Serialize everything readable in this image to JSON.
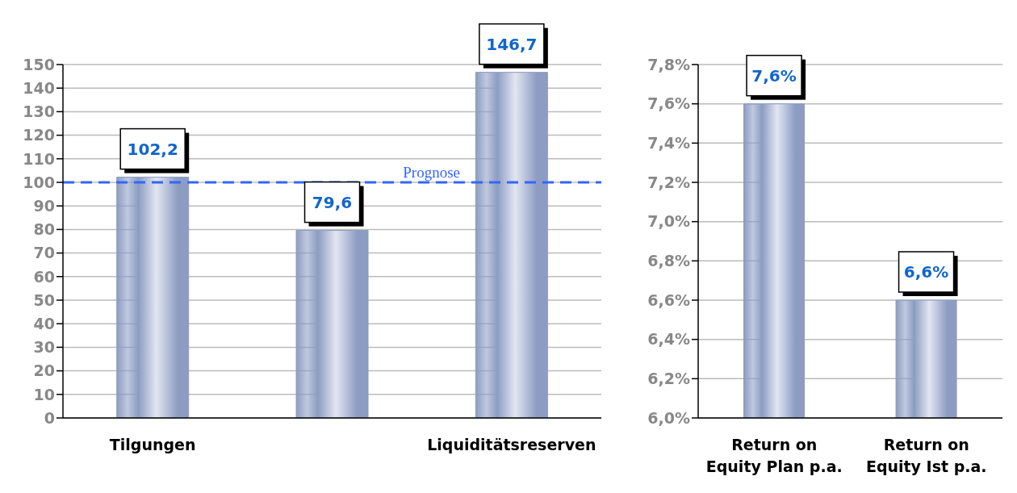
{
  "chart_data": [
    {
      "type": "bar",
      "categories": [
        "Tilgungen",
        null,
        "Liquiditätsreserven"
      ],
      "series": [
        {
          "color": "#8c9cc2",
          "values": [
            102.2,
            79.6,
            146.7
          ],
          "value_labels": [
            "102,2",
            "79,6",
            "146,7"
          ]
        }
      ],
      "ylim": [
        0,
        150
      ],
      "yticks": [
        0,
        10,
        20,
        30,
        40,
        50,
        60,
        70,
        80,
        90,
        100,
        110,
        120,
        130,
        140,
        150
      ],
      "grid": "y",
      "legend": false,
      "ref_lines": [
        {
          "axis": "y",
          "value": 100,
          "label": "Prognose",
          "color": "#3366ff",
          "line_style": "dashed"
        }
      ]
    },
    {
      "type": "bar",
      "categories": [
        "Return on Equity Plan p.a.",
        "Return on Equity Ist p.a."
      ],
      "series": [
        {
          "color": "#8c9cc2",
          "values": [
            7.6,
            6.6
          ],
          "value_labels": [
            "7,6%",
            "6,6%"
          ]
        }
      ],
      "ylim": [
        6.0,
        7.8
      ],
      "yticks": [
        {
          "value": 6.0,
          "label": "6,0%"
        },
        {
          "value": 6.2,
          "label": "6,2%"
        },
        {
          "value": 6.4,
          "label": "6,4%"
        },
        {
          "value": 6.6,
          "label": "6,6%"
        },
        {
          "value": 6.8,
          "label": "6,8%"
        },
        {
          "value": 7.0,
          "label": "7,0%"
        },
        {
          "value": 7.2,
          "label": "7,2%"
        },
        {
          "value": 7.4,
          "label": "7,4%"
        },
        {
          "value": 7.6,
          "label": "7,6%"
        },
        {
          "value": 7.8,
          "label": "7,8%"
        }
      ],
      "grid": "y",
      "legend": false
    }
  ]
}
